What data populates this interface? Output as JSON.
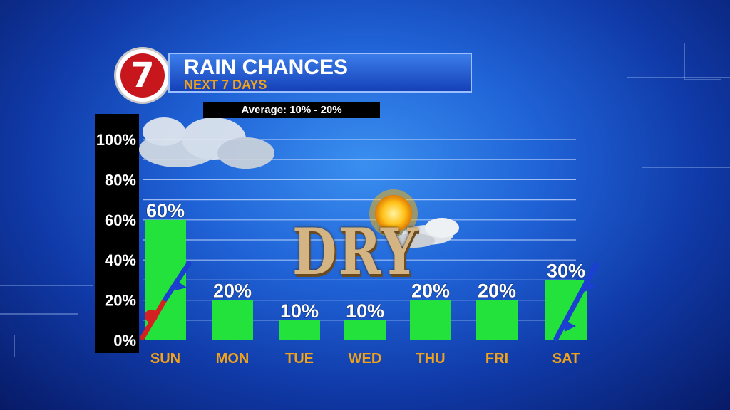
{
  "header": {
    "logo_text": "7",
    "title": "RAIN CHANCES",
    "subtitle": "NEXT 7 DAYS"
  },
  "average_label": "Average: 10% - 20%",
  "center_word": "DRY",
  "colors": {
    "bar": "#22e23b",
    "day_label": "#f0a21a",
    "axis_bg": "#000000",
    "value_label": "#ffffff"
  },
  "icons": [
    "cloud-icon",
    "sun-cloud-icon",
    "warm-front-arrow-icon",
    "cold-front-arrow-icon"
  ],
  "chart_data": {
    "type": "bar",
    "title": "RAIN CHANCES",
    "categories": [
      "SUN",
      "MON",
      "TUE",
      "WED",
      "THU",
      "FRI",
      "SAT"
    ],
    "values": [
      60,
      20,
      10,
      10,
      20,
      20,
      30
    ],
    "value_labels": [
      "60%",
      "20%",
      "10%",
      "10%",
      "20%",
      "20%",
      "30%"
    ],
    "yticks": [
      0,
      20,
      40,
      60,
      80,
      100
    ],
    "ytick_labels": [
      "0%",
      "20%",
      "40%",
      "60%",
      "80%",
      "100%"
    ],
    "ylim": [
      0,
      100
    ],
    "grid": true
  }
}
